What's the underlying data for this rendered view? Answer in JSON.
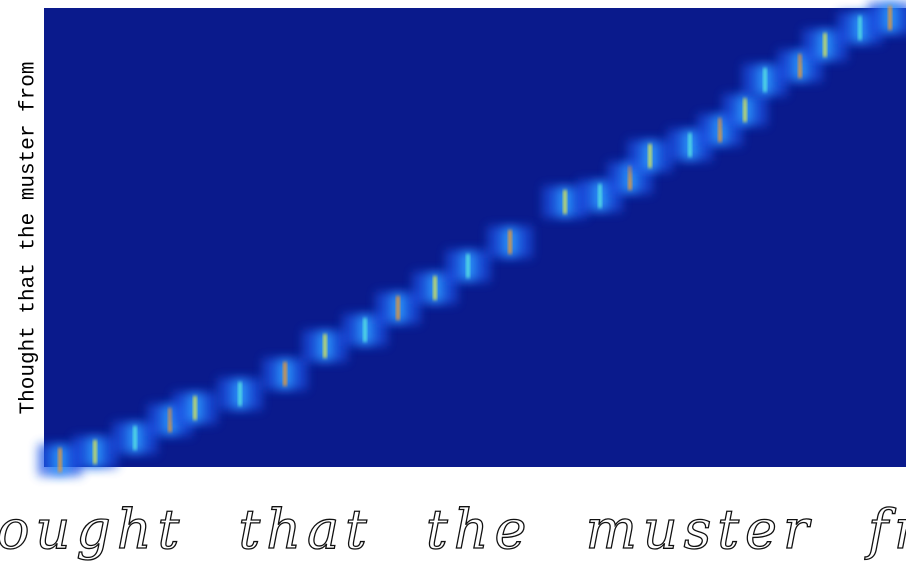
{
  "heatmap": {
    "row_label": "Thought that the muster from"
  },
  "handwriting": {
    "text": "thought that the muster from"
  }
}
